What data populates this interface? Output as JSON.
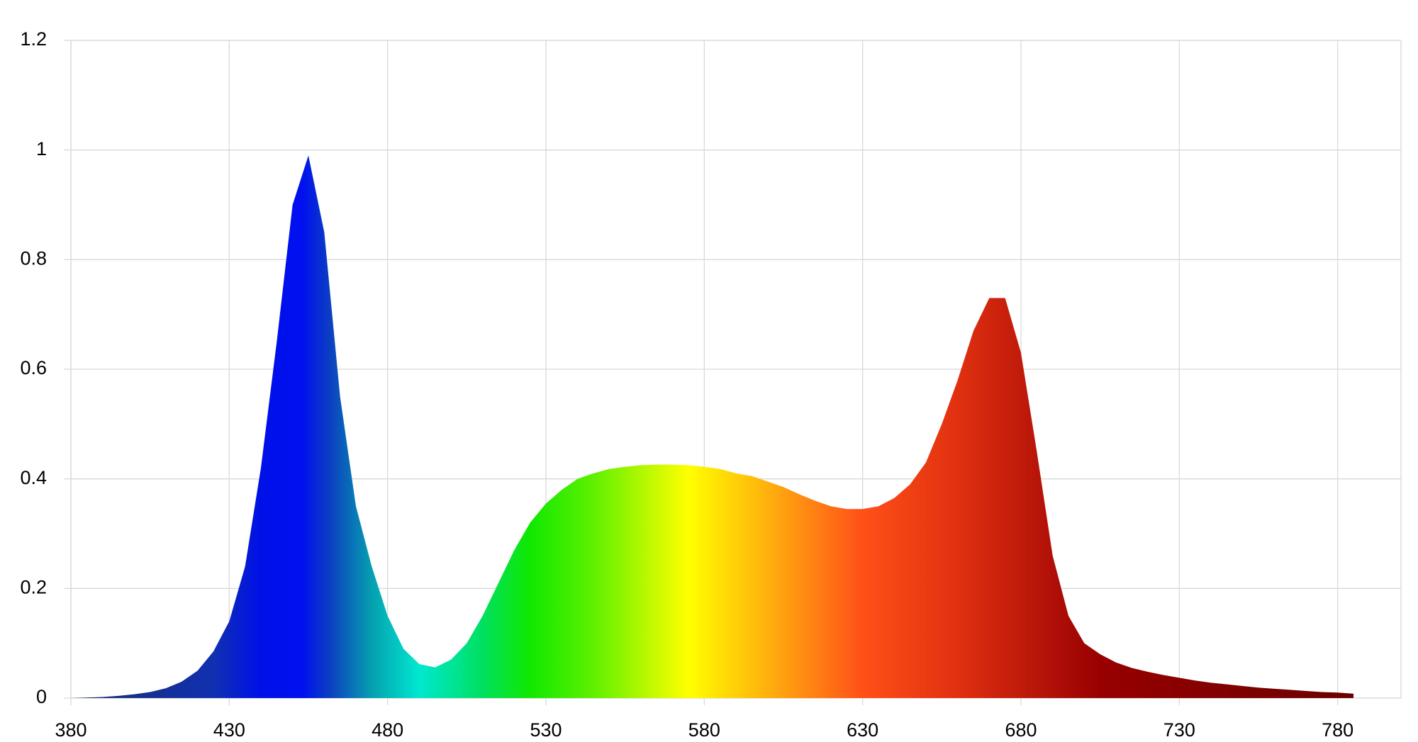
{
  "chart_data": {
    "type": "area",
    "x": [
      380,
      385,
      390,
      395,
      400,
      405,
      410,
      415,
      420,
      425,
      430,
      435,
      440,
      445,
      450,
      455,
      460,
      465,
      470,
      475,
      480,
      485,
      490,
      495,
      500,
      505,
      510,
      515,
      520,
      525,
      530,
      535,
      540,
      545,
      550,
      555,
      560,
      565,
      570,
      575,
      580,
      585,
      590,
      595,
      600,
      605,
      610,
      615,
      620,
      625,
      630,
      635,
      640,
      645,
      650,
      655,
      660,
      665,
      670,
      675,
      680,
      685,
      690,
      695,
      700,
      705,
      710,
      715,
      720,
      725,
      730,
      735,
      740,
      745,
      750,
      755,
      760,
      765,
      770,
      775,
      780,
      785
    ],
    "values": [
      0,
      0.001,
      0.002,
      0.004,
      0.007,
      0.011,
      0.018,
      0.03,
      0.05,
      0.085,
      0.14,
      0.24,
      0.42,
      0.65,
      0.9,
      0.99,
      0.85,
      0.55,
      0.35,
      0.24,
      0.15,
      0.09,
      0.062,
      0.056,
      0.07,
      0.1,
      0.15,
      0.21,
      0.27,
      0.32,
      0.355,
      0.38,
      0.4,
      0.41,
      0.418,
      0.422,
      0.425,
      0.426,
      0.426,
      0.425,
      0.422,
      0.418,
      0.41,
      0.405,
      0.395,
      0.385,
      0.372,
      0.36,
      0.35,
      0.345,
      0.345,
      0.35,
      0.365,
      0.39,
      0.43,
      0.5,
      0.58,
      0.67,
      0.73,
      0.73,
      0.63,
      0.45,
      0.26,
      0.15,
      0.1,
      0.08,
      0.065,
      0.055,
      0.048,
      0.042,
      0.037,
      0.032,
      0.028,
      0.025,
      0.022,
      0.019,
      0.017,
      0.015,
      0.013,
      0.011,
      0.01,
      0.008
    ],
    "fill_gradient": [
      {
        "x": 380,
        "color": "#1b2f6b"
      },
      {
        "x": 425,
        "color": "#1030b0"
      },
      {
        "x": 440,
        "color": "#0010e8"
      },
      {
        "x": 453,
        "color": "#0010f0"
      },
      {
        "x": 462,
        "color": "#0c40c0"
      },
      {
        "x": 475,
        "color": "#05a0b0"
      },
      {
        "x": 490,
        "color": "#00e8d0"
      },
      {
        "x": 510,
        "color": "#00e060"
      },
      {
        "x": 525,
        "color": "#10e800"
      },
      {
        "x": 545,
        "color": "#60f000"
      },
      {
        "x": 575,
        "color": "#ffff00"
      },
      {
        "x": 605,
        "color": "#ffa010"
      },
      {
        "x": 630,
        "color": "#ff5018"
      },
      {
        "x": 660,
        "color": "#e03010"
      },
      {
        "x": 690,
        "color": "#b01008"
      },
      {
        "x": 705,
        "color": "#980000"
      },
      {
        "x": 785,
        "color": "#6a0000"
      }
    ],
    "xlim": [
      380,
      800
    ],
    "xticks": [
      380,
      430,
      480,
      530,
      580,
      630,
      680,
      730,
      780
    ],
    "ylim": [
      0,
      1.2
    ],
    "yticks": [
      0,
      0.2,
      0.4,
      0.6,
      0.8,
      1,
      1.2
    ],
    "grid": true
  }
}
